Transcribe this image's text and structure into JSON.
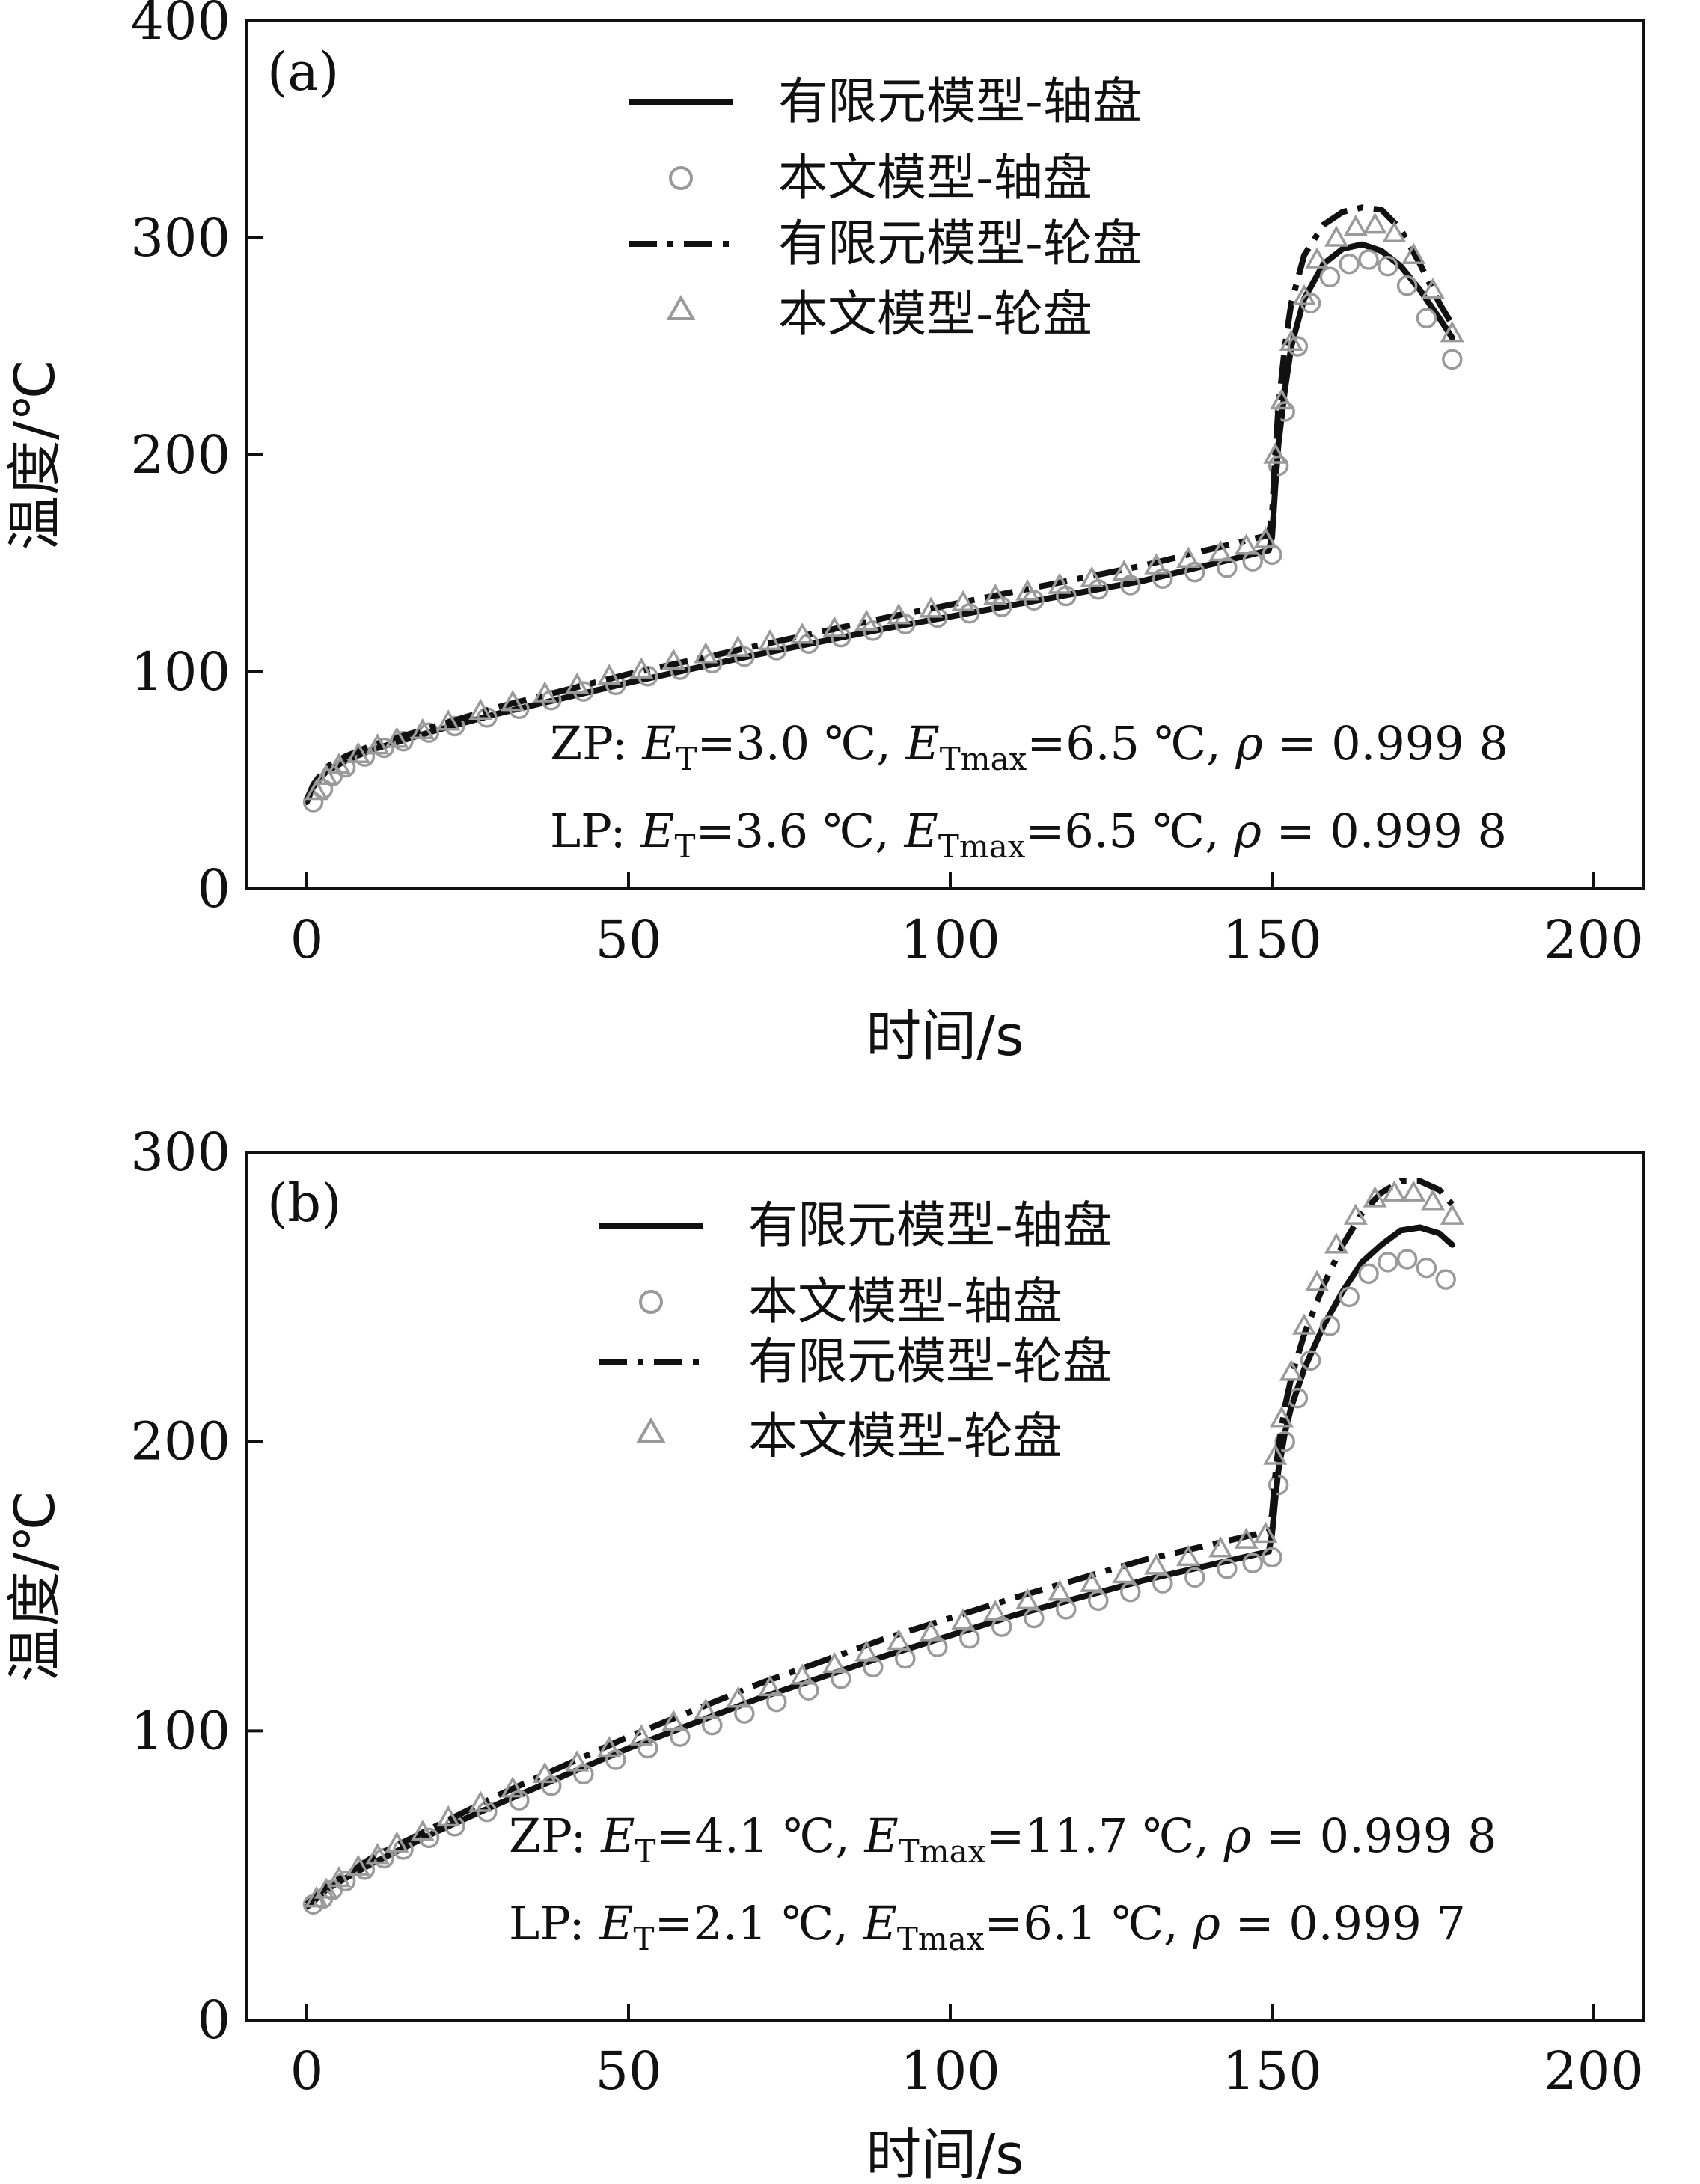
{
  "chart_data": [
    {
      "type": "line",
      "panel_label": "(a)",
      "xlabel": "时间/s",
      "ylabel": "温度/℃",
      "xlim": [
        0,
        200
      ],
      "ylim": [
        0,
        400
      ],
      "xticks": [
        0,
        50,
        100,
        150,
        200
      ],
      "yticks": [
        0,
        100,
        200,
        300,
        400
      ],
      "legend_position": "top-center",
      "legend": [
        {
          "label": "有限元模型-轴盘",
          "style": "solid"
        },
        {
          "label": "本文模型-轴盘",
          "style": "circle"
        },
        {
          "label": "有限元模型-轮盘",
          "style": "dashdot"
        },
        {
          "label": "本文模型-轮盘",
          "style": "triangle"
        }
      ],
      "annotation_lines": [
        {
          "prefix": "ZP: ",
          "e1": "E",
          "s1": "T",
          "v1": "=3.0 ℃, ",
          "e2": "E",
          "s2": "Tmax",
          "v2": "=6.5 ℃,  ",
          "rho": "ρ",
          "v3": " = 0.999 8"
        },
        {
          "prefix": "LP: ",
          "e1": "E",
          "s1": "T",
          "v1": "=3.6 ℃, ",
          "e2": "E",
          "s2": "Tmax",
          "v2": "=6.5 ℃,  ",
          "rho": "ρ",
          "v3": " = 0.999 8"
        }
      ],
      "series": [
        {
          "name": "有限元模型-轴盘",
          "style": "solid",
          "x": [
            0,
            1,
            3,
            6,
            10,
            20,
            30,
            50,
            70,
            90,
            110,
            130,
            149.5,
            150,
            150.5,
            151,
            152,
            153,
            155,
            158,
            161,
            164,
            167,
            170,
            173,
            176,
            178
          ],
          "y": [
            40,
            47,
            54,
            59,
            64,
            73,
            81,
            95,
            108,
            120,
            131,
            142,
            156,
            162,
            185,
            205,
            230,
            250,
            272,
            288,
            295,
            297,
            294,
            287,
            276,
            263,
            254
          ]
        },
        {
          "name": "本文模型-轴盘",
          "style": "circle",
          "x": [
            1,
            2.5,
            4,
            6,
            9,
            12,
            15,
            19,
            23,
            28,
            33,
            38,
            43,
            48,
            53,
            58,
            63,
            68,
            73,
            78,
            83,
            88,
            93,
            98,
            103,
            108,
            113,
            118,
            123,
            128,
            133,
            138,
            143,
            147,
            150,
            151,
            152,
            154,
            156,
            159,
            162,
            165,
            168,
            171,
            174,
            178
          ],
          "y": [
            40,
            46,
            52,
            56,
            61,
            65,
            68,
            72,
            75,
            79,
            83,
            87,
            91,
            94,
            98,
            101,
            104,
            107,
            110,
            113,
            116,
            119,
            122,
            125,
            127,
            130,
            133,
            135,
            138,
            140,
            143,
            146,
            148,
            151,
            154,
            195,
            220,
            250,
            270,
            282,
            288,
            290,
            287,
            278,
            263,
            244
          ]
        },
        {
          "name": "有限元模型-轮盘",
          "style": "dashdot",
          "x": [
            0,
            1,
            3,
            6,
            10,
            20,
            30,
            50,
            70,
            90,
            110,
            130,
            149.5,
            150,
            150.5,
            151,
            152,
            153,
            155,
            158,
            161,
            164,
            167,
            170,
            173,
            176,
            178
          ],
          "y": [
            41,
            48,
            56,
            61,
            66,
            75,
            84,
            99,
            112,
            125,
            137,
            149,
            163,
            172,
            200,
            222,
            250,
            270,
            292,
            306,
            312,
            314,
            313,
            304,
            288,
            270,
            260
          ]
        },
        {
          "name": "本文模型-轮盘",
          "style": "triangle",
          "x": [
            1.5,
            3,
            5,
            8,
            11,
            14,
            18,
            22,
            27,
            32,
            37,
            42,
            47,
            52,
            57,
            62,
            67,
            72,
            77,
            82,
            87,
            92,
            97,
            102,
            107,
            112,
            117,
            122,
            127,
            132,
            137,
            142,
            146,
            149,
            150.5,
            151.5,
            153,
            155,
            157,
            160,
            163,
            166,
            169,
            172,
            175,
            178
          ],
          "y": [
            45,
            52,
            57,
            62,
            66,
            69,
            73,
            77,
            82,
            86,
            90,
            94,
            98,
            101,
            105,
            108,
            111,
            114,
            117,
            120,
            123,
            126,
            129,
            132,
            135,
            137,
            140,
            143,
            146,
            149,
            152,
            155,
            158,
            161,
            200,
            225,
            252,
            273,
            290,
            300,
            305,
            306,
            302,
            292,
            276,
            256
          ]
        }
      ]
    },
    {
      "type": "line",
      "panel_label": "(b)",
      "xlabel": "时间/s",
      "ylabel": "温度/℃",
      "xlim": [
        0,
        200
      ],
      "ylim": [
        0,
        300
      ],
      "xticks": [
        0,
        50,
        100,
        150,
        200
      ],
      "yticks": [
        0,
        100,
        200,
        300
      ],
      "legend_position": "top-center",
      "legend": [
        {
          "label": "有限元模型-轴盘",
          "style": "solid"
        },
        {
          "label": "本文模型-轴盘",
          "style": "circle"
        },
        {
          "label": "有限元模型-轮盘",
          "style": "dashdot"
        },
        {
          "label": "本文模型-轮盘",
          "style": "triangle"
        }
      ],
      "annotation_lines": [
        {
          "prefix": "ZP: ",
          "e1": "E",
          "s1": "T",
          "v1": "=4.1 ℃, ",
          "e2": "E",
          "s2": "Tmax",
          "v2": "=11.7 ℃,  ",
          "rho": "ρ",
          "v3": " = 0.999 8"
        },
        {
          "prefix": "LP: ",
          "e1": "E",
          "s1": "T",
          "v1": "=2.1 ℃, ",
          "e2": "E",
          "s2": "Tmax",
          "v2": "=6.1 ℃,  ",
          "rho": "ρ",
          "v3": " = 0.999 7"
        }
      ],
      "series": [
        {
          "name": "有限元模型-轴盘",
          "style": "solid",
          "x": [
            0,
            1,
            3,
            6,
            10,
            20,
            30,
            50,
            70,
            90,
            110,
            130,
            149.5,
            150,
            150.5,
            151,
            152,
            153,
            155,
            158,
            161,
            164,
            167,
            170,
            173,
            176,
            178
          ],
          "y": [
            39,
            41,
            45,
            49,
            54,
            65,
            75,
            94,
            111,
            126,
            140,
            152,
            162,
            168,
            180,
            190,
            203,
            212,
            225,
            240,
            252,
            262,
            268,
            273,
            274,
            272,
            268
          ]
        },
        {
          "name": "本文模型-轴盘",
          "style": "circle",
          "x": [
            1,
            2.5,
            4,
            6,
            9,
            12,
            15,
            19,
            23,
            28,
            33,
            38,
            43,
            48,
            53,
            58,
            63,
            68,
            73,
            78,
            83,
            88,
            93,
            98,
            103,
            108,
            113,
            118,
            123,
            128,
            133,
            138,
            143,
            147,
            150,
            151,
            152,
            154,
            156,
            159,
            162,
            165,
            168,
            171,
            174,
            177
          ],
          "y": [
            40,
            42,
            45,
            48,
            52,
            56,
            59,
            63,
            67,
            72,
            76,
            81,
            85,
            90,
            94,
            98,
            102,
            106,
            110,
            114,
            118,
            122,
            125,
            129,
            132,
            136,
            139,
            142,
            145,
            148,
            151,
            153,
            156,
            158,
            160,
            185,
            200,
            215,
            228,
            240,
            250,
            258,
            262,
            263,
            260,
            256
          ]
        },
        {
          "name": "有限元模型-轮盘",
          "style": "dashdot",
          "x": [
            0,
            1,
            3,
            6,
            10,
            20,
            30,
            50,
            70,
            90,
            110,
            130,
            149.5,
            150,
            150.5,
            151,
            152,
            153,
            155,
            158,
            161,
            164,
            167,
            170,
            173,
            176,
            178
          ],
          "y": [
            40,
            42,
            46,
            50,
            56,
            67,
            78,
            98,
            116,
            132,
            146,
            159,
            169,
            175,
            188,
            198,
            212,
            222,
            237,
            254,
            268,
            279,
            286,
            290,
            290,
            287,
            282
          ]
        },
        {
          "name": "本文模型-轮盘",
          "style": "triangle",
          "x": [
            1.5,
            3,
            5,
            8,
            11,
            14,
            18,
            22,
            27,
            32,
            37,
            42,
            47,
            52,
            57,
            62,
            67,
            72,
            77,
            82,
            87,
            92,
            97,
            102,
            107,
            112,
            117,
            122,
            127,
            132,
            137,
            142,
            146,
            149,
            150.5,
            151.5,
            153,
            155,
            157,
            160,
            163,
            166,
            169,
            172,
            175,
            178
          ],
          "y": [
            42,
            45,
            49,
            53,
            57,
            61,
            65,
            70,
            75,
            80,
            85,
            89,
            94,
            98,
            103,
            107,
            111,
            115,
            119,
            123,
            127,
            131,
            134,
            138,
            141,
            145,
            148,
            151,
            154,
            157,
            160,
            163,
            166,
            168,
            195,
            208,
            224,
            240,
            255,
            268,
            278,
            284,
            286,
            286,
            283,
            278
          ]
        }
      ]
    }
  ]
}
